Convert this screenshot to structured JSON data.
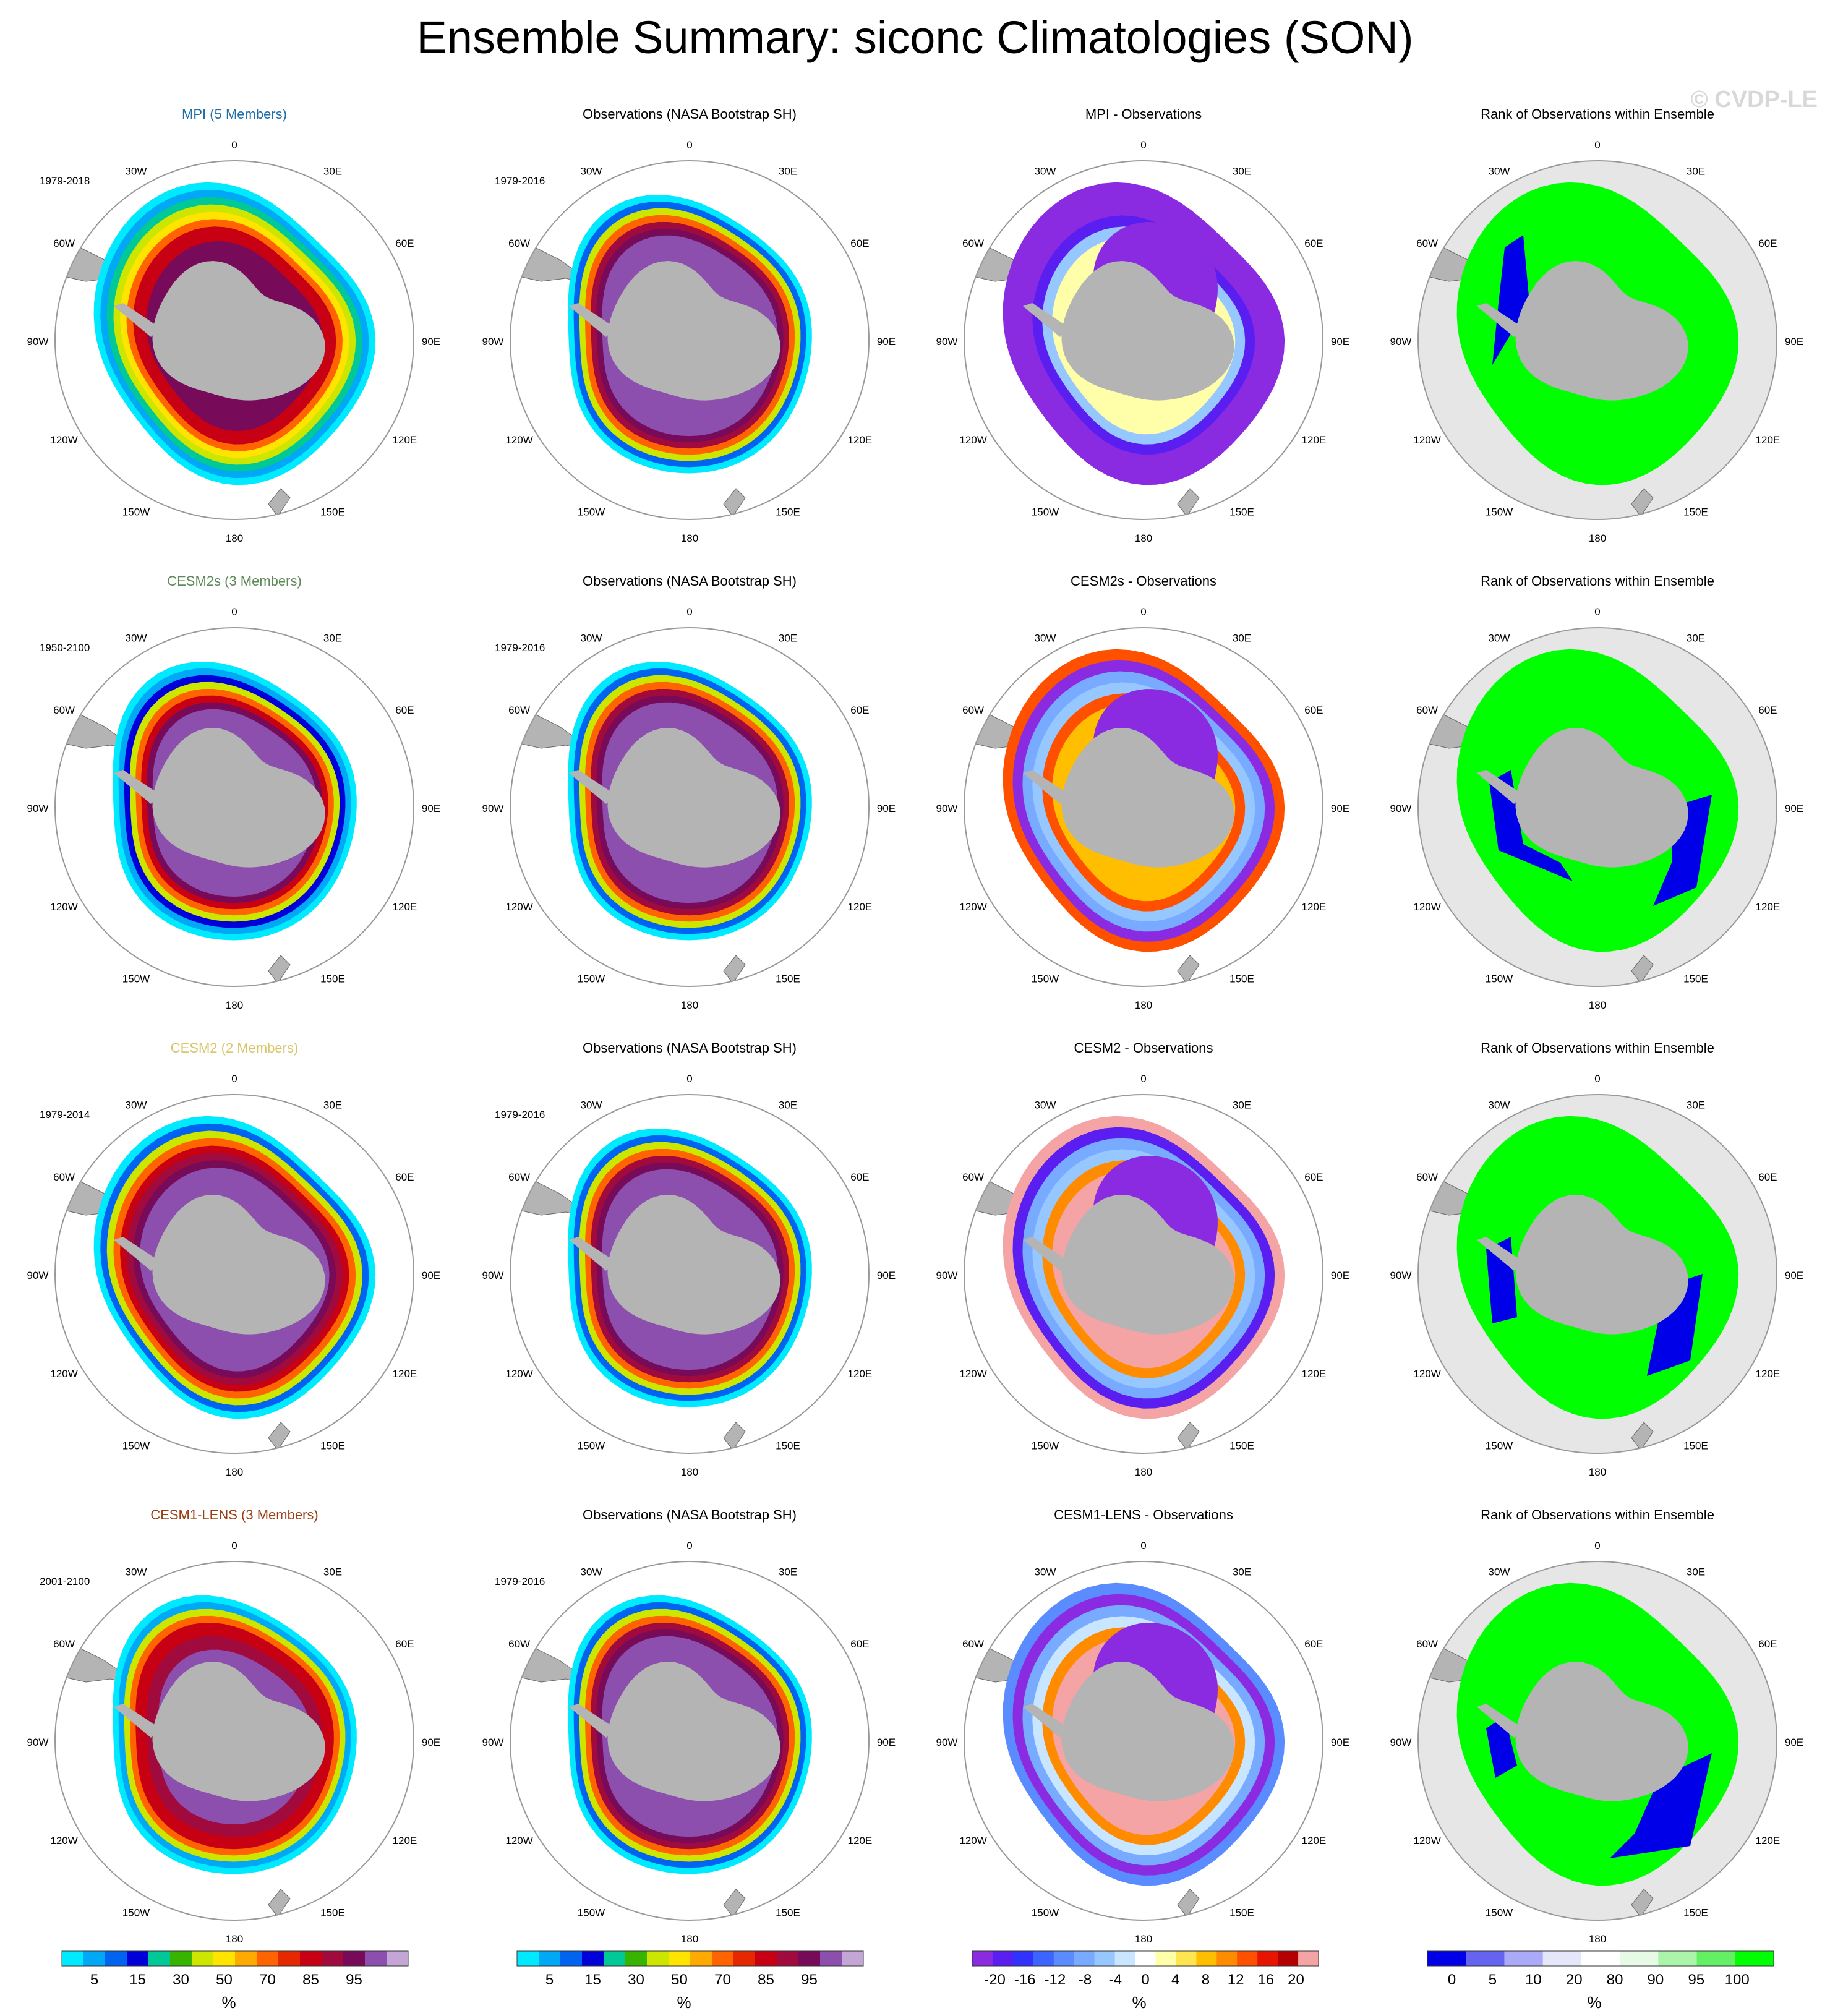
{
  "title": "Ensemble Summary: siconc Climatologies (SON)",
  "watermark": "© CVDP-LE",
  "lon_labels": [
    "0",
    "30E",
    "60E",
    "90E",
    "120E",
    "150E",
    "180",
    "150W",
    "120W",
    "90W",
    "60W",
    "30W"
  ],
  "colors": {
    "land": "#b4b4b4",
    "rank_background": "#e6e6e6",
    "rank_high": "#00ff00",
    "rank_low": "#0000e8",
    "diff_low": "#8a2be2",
    "obs_inner": "#8c4fae",
    "circle": "#999999"
  },
  "rows": [
    {
      "model": "MPI (5 Members)",
      "model_color": "#1f6ea6",
      "model_years": "1979-2018",
      "obs": "Observations (NASA Bootstrap SH)",
      "obs_years": "1979-2016",
      "diff": "MPI - Observations",
      "rank": "Rank of Observations within Ensemble"
    },
    {
      "model": "CESM2s (3 Members)",
      "model_color": "#5e8a5a",
      "model_years": "1950-2100",
      "obs": "Observations (NASA Bootstrap SH)",
      "obs_years": "1979-2016",
      "diff": "CESM2s - Observations",
      "rank": "Rank of Observations within Ensemble"
    },
    {
      "model": "CESM2 (2 Members)",
      "model_color": "#d8c66a",
      "model_years": "1979-2014",
      "obs": "Observations (NASA Bootstrap SH)",
      "obs_years": "1979-2016",
      "diff": "CESM2 - Observations",
      "rank": "Rank of Observations within Ensemble"
    },
    {
      "model": "CESM1-LENS (3 Members)",
      "model_color": "#9a3f14",
      "model_years": "2001-2100",
      "obs": "Observations (NASA Bootstrap SH)",
      "obs_years": "1979-2016",
      "diff": "CESM1-LENS - Observations",
      "rank": "Rank of Observations within Ensemble"
    }
  ],
  "chart_data": [
    {
      "type": "heatmap",
      "name": "siconc climatology colorbar",
      "unit": "%",
      "tick_labels": [
        "5",
        "15",
        "30",
        "50",
        "70",
        "85",
        "95"
      ],
      "colors": [
        "#00eaff",
        "#00a8f5",
        "#0064f0",
        "#0000d8",
        "#00c896",
        "#36b400",
        "#cce600",
        "#ffe400",
        "#ffaa00",
        "#ff6400",
        "#e62800",
        "#c80014",
        "#a00a3c",
        "#780a5a",
        "#8c4fae",
        "#c3a6d6"
      ]
    },
    {
      "type": "heatmap",
      "name": "model minus observations colorbar",
      "unit": "%",
      "tick_labels": [
        "-20",
        "-16",
        "-12",
        "-8",
        "-4",
        "0",
        "4",
        "8",
        "12",
        "16",
        "20"
      ],
      "colors": [
        "#8a2be2",
        "#5a1ef0",
        "#3232ff",
        "#3c64ff",
        "#5a8cff",
        "#78aaff",
        "#96c8ff",
        "#c8e6ff",
        "#ffffff",
        "#ffffaa",
        "#ffe650",
        "#ffbe00",
        "#ff8c00",
        "#ff5000",
        "#e61400",
        "#b40000",
        "#f4a4a4"
      ]
    },
    {
      "type": "heatmap",
      "name": "rank colorbar",
      "unit": "%",
      "tick_labels": [
        "0",
        "5",
        "10",
        "20",
        "80",
        "90",
        "95",
        "100"
      ],
      "colors": [
        "#0000e8",
        "#6464f0",
        "#aaaaf8",
        "#e6e6fa",
        "#ffffff",
        "#e6fae6",
        "#aaf5aa",
        "#64f064",
        "#00ff00"
      ]
    }
  ]
}
